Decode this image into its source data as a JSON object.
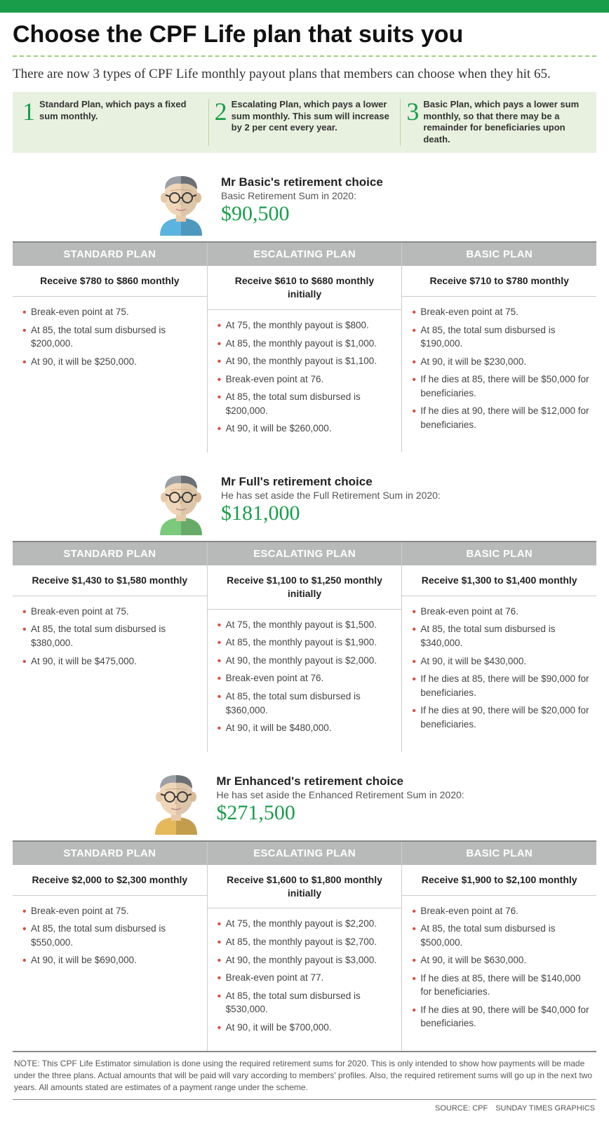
{
  "colors": {
    "accent_green": "#1a9d4a",
    "light_green_bg": "#e8f1df",
    "grey_header": "#b8bab9",
    "bullet_red": "#d94d3e",
    "rule_grey": "#888888",
    "border_grey": "#cccccc"
  },
  "title": "Choose the CPF Life plan that suits you",
  "intro": "There are now 3 types of CPF Life monthly payout plans that members can choose when they hit 65.",
  "plan_types": [
    {
      "num": "1",
      "desc": "Standard Plan, which pays a fixed sum monthly."
    },
    {
      "num": "2",
      "desc": "Escalating Plan, which pays a lower sum monthly. This sum will increase by 2 per cent every year."
    },
    {
      "num": "3",
      "desc": "Basic Plan, which pays a lower sum monthly, so that there may be a remainder for beneficiaries upon death."
    }
  ],
  "plan_headers": [
    "STANDARD PLAN",
    "ESCALATING PLAN",
    "BASIC PLAN"
  ],
  "personas": [
    {
      "avatar_shirt": "#5bb3e0",
      "title": "Mr Basic's retirement choice",
      "sub": "Basic Retirement Sum in 2020:",
      "amount": "$90,500",
      "plans": [
        {
          "receive": "Receive $780 to $860 monthly",
          "points": [
            "Break-even point at 75.",
            "At 85, the total sum disbursed is $200,000.",
            "At 90, it will be $250,000."
          ]
        },
        {
          "receive": "Receive $610 to $680 monthly initially",
          "points": [
            "At 75, the monthly payout is $800.",
            "At 85, the monthly payout is $1,000.",
            "At 90, the monthly payout is $1,100.",
            "Break-even point at 76.",
            "At 85, the total sum disbursed is $200,000.",
            "At 90, it will be $260,000."
          ]
        },
        {
          "receive": "Receive $710 to $780 monthly",
          "points": [
            "Break-even point at 75.",
            "At 85, the total sum disbursed is $190,000.",
            "At 90, it will be $230,000.",
            "If he dies at 85, there will be $50,000 for beneficiaries.",
            "If he dies at 90, there will be $12,000 for beneficiaries."
          ]
        }
      ]
    },
    {
      "avatar_shirt": "#7bc97b",
      "title": "Mr Full's retirement choice",
      "sub": "He has set aside the Full Retirement Sum in 2020:",
      "amount": "$181,000",
      "plans": [
        {
          "receive": "Receive $1,430 to $1,580 monthly",
          "points": [
            "Break-even point at 75.",
            "At 85, the total sum disbursed is $380,000.",
            "At 90, it will be $475,000."
          ]
        },
        {
          "receive": "Receive $1,100 to $1,250 monthly initially",
          "points": [
            "At 75, the monthly payout is $1,500.",
            "At 85, the monthly payout is $1,900.",
            "At 90, the monthly payout is $2,000.",
            "Break-even point at 76.",
            "At 85, the total sum disbursed is $360,000.",
            "At 90, it will be $480,000."
          ]
        },
        {
          "receive": "Receive $1,300 to $1,400 monthly",
          "points": [
            "Break-even point at 76.",
            "At 85, the total sum disbursed is $340,000.",
            "At 90, it will be $430,000.",
            "If he dies at 85, there will be $90,000 for beneficiaries.",
            "If he dies at 90, there will be $20,000 for beneficiaries."
          ]
        }
      ]
    },
    {
      "avatar_shirt": "#e5b85a",
      "title": "Mr Enhanced's retirement choice",
      "sub": "He has set aside the Enhanced Retirement Sum in 2020:",
      "amount": "$271,500",
      "plans": [
        {
          "receive": "Receive $2,000 to $2,300 monthly",
          "points": [
            "Break-even point at 75.",
            "At 85, the total sum disbursed is $550,000.",
            "At 90, it will be $690,000."
          ]
        },
        {
          "receive": "Receive $1,600 to $1,800 monthly initially",
          "points": [
            "At 75, the monthly payout is $2,200.",
            "At 85, the monthly payout is $2,700.",
            "At 90, the monthly payout is $3,000.",
            "Break-even point at 77.",
            "At 85, the total sum disbursed is $530,000.",
            "At 90, it will be $700,000."
          ]
        },
        {
          "receive": "Receive $1,900 to $2,100 monthly",
          "points": [
            "Break-even point at 76.",
            "At 85, the total sum disbursed is $500,000.",
            "At 90, it will be $630,000.",
            "If he dies at 85, there will be $140,000 for beneficiaries.",
            "If he dies at 90, there will be $40,000 for beneficiaries."
          ]
        }
      ]
    }
  ],
  "footnote": "NOTE: This CPF Life Estimator simulation is done using the required retirement sums for 2020. This is only intended to show how payments will be made under the three plans. Actual amounts that will be paid will vary according to members' profiles.  Also, the required retirement sums will go up in the next two years. All amounts stated are estimates of a payment range under the scheme.",
  "source": "SOURCE: CPF SUNDAY TIMES GRAPHICS"
}
